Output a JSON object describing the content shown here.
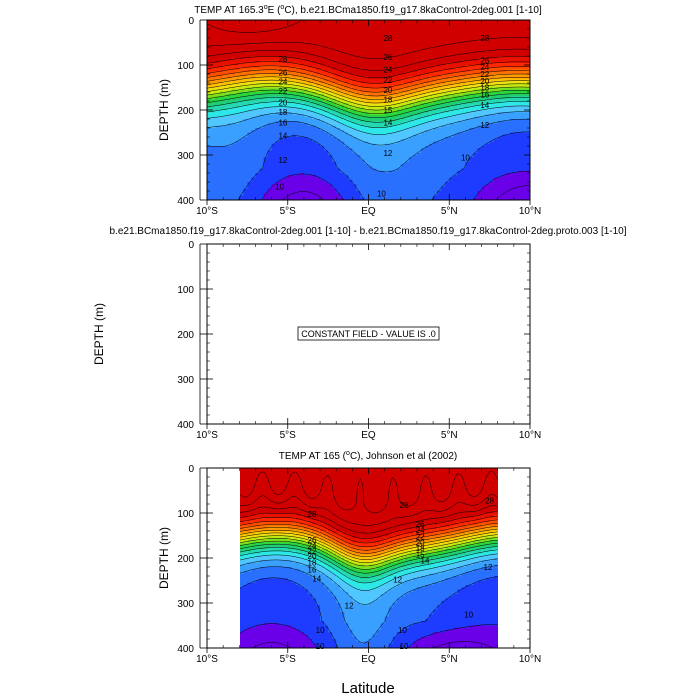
{
  "chart_data": [
    {
      "type": "contour",
      "title": "TEMP AT 165.3°E (°C), b.e21.BCma1850.f19_g17.8kaControl-2deg.001 [1-10]",
      "title_plain": "TEMP AT 165.3",
      "title_sup": "o",
      "title_rest": "E (",
      "title_sup2": "o",
      "title_end": "C), b.e21.BCma1850.f19_g17.8kaControl-2deg.001 [1-10]",
      "ylabel": "DEPTH (m)",
      "xlim": [
        -10,
        10
      ],
      "ylim": [
        0,
        400
      ],
      "x_ticks": [
        "10°S",
        "5°S",
        "EQ",
        "5°N",
        "10°N"
      ],
      "y_ticks": [
        "0",
        "100",
        "200",
        "300",
        "400"
      ],
      "contour_levels": [
        8,
        9,
        10,
        11,
        12,
        13,
        14,
        15,
        16,
        17,
        18,
        19,
        20,
        21,
        22,
        23,
        24,
        25,
        26,
        27,
        28,
        29
      ],
      "colormap": [
        "#6a00e8",
        "#1e3cff",
        "#2a70ff",
        "#3aa0ff",
        "#50c8ff",
        "#2ee8e8",
        "#25d8b0",
        "#1fce70",
        "#2ad63c",
        "#7ce01e",
        "#c8ea10",
        "#f0e010",
        "#ffc000",
        "#ff9a00",
        "#ff7200",
        "#ff4e00",
        "#ff2800",
        "#e81000",
        "#d00000"
      ],
      "contour_labels": [
        {
          "text": "28",
          "lat": -5.3,
          "depth": 87
        },
        {
          "text": "28",
          "lat": 1.2,
          "depth": 40
        },
        {
          "text": "28",
          "lat": 7.2,
          "depth": 40
        },
        {
          "text": "26",
          "lat": -5.3,
          "depth": 117
        },
        {
          "text": "26",
          "lat": 1.2,
          "depth": 82
        },
        {
          "text": "26",
          "lat": 7.2,
          "depth": 90
        },
        {
          "text": "24",
          "lat": -5.3,
          "depth": 137
        },
        {
          "text": "24",
          "lat": 1.2,
          "depth": 110
        },
        {
          "text": "24",
          "lat": 7.2,
          "depth": 104
        },
        {
          "text": "22",
          "lat": -5.3,
          "depth": 158
        },
        {
          "text": "22",
          "lat": 1.2,
          "depth": 133
        },
        {
          "text": "22",
          "lat": 7.2,
          "depth": 120
        },
        {
          "text": "20",
          "lat": -5.3,
          "depth": 183
        },
        {
          "text": "20",
          "lat": 1.2,
          "depth": 155
        },
        {
          "text": "20",
          "lat": 7.2,
          "depth": 136
        },
        {
          "text": "18",
          "lat": -5.3,
          "depth": 205
        },
        {
          "text": "18",
          "lat": 1.2,
          "depth": 177
        },
        {
          "text": "18",
          "lat": 7.2,
          "depth": 150
        },
        {
          "text": "16",
          "lat": -5.3,
          "depth": 228
        },
        {
          "text": "16",
          "lat": 7.2,
          "depth": 166
        },
        {
          "text": "15",
          "lat": 1.2,
          "depth": 200
        },
        {
          "text": "14",
          "lat": -5.3,
          "depth": 257
        },
        {
          "text": "14",
          "lat": 1.2,
          "depth": 228
        },
        {
          "text": "14",
          "lat": 7.2,
          "depth": 189
        },
        {
          "text": "12",
          "lat": -5.3,
          "depth": 311
        },
        {
          "text": "12",
          "lat": 1.2,
          "depth": 295
        },
        {
          "text": "12",
          "lat": 7.2,
          "depth": 233
        },
        {
          "text": "10",
          "lat": -5.5,
          "depth": 370
        },
        {
          "text": "10",
          "lat": 0.8,
          "depth": 385
        },
        {
          "text": "10",
          "lat": 6.0,
          "depth": 305
        }
      ]
    },
    {
      "type": "contour",
      "title": "b.e21.BCma1850.f19_g17.8kaControl-2deg.001 [1-10] - b.e21.BCma1850.f19_g17.8kaControl-2deg.proto.003 [1-10]",
      "ylabel": "DEPTH (m)",
      "xlim": [
        -10,
        10
      ],
      "ylim": [
        0,
        400
      ],
      "x_ticks": [
        "10°S",
        "5°S",
        "EQ",
        "5°N",
        "10°N"
      ],
      "y_ticks": [
        "0",
        "100",
        "200",
        "300",
        "400"
      ],
      "annotation": "CONSTANT FIELD - VALUE IS .0",
      "constant_value": 0.0
    },
    {
      "type": "contour",
      "title": "TEMP AT 165 (°C), Johnson et al (2002)",
      "title_plain": "TEMP AT 165 (",
      "title_sup": "o",
      "title_end": "C), Johnson et al (2002)",
      "ylabel": "DEPTH (m)",
      "xlabel": "Latitude",
      "xlim": [
        -10,
        10
      ],
      "ylim": [
        0,
        400
      ],
      "data_lat_range": [
        -8,
        8
      ],
      "x_ticks": [
        "10°S",
        "5°S",
        "EQ",
        "5°N",
        "10°N"
      ],
      "y_ticks": [
        "0",
        "100",
        "200",
        "300",
        "400"
      ],
      "contour_labels": [
        {
          "text": "28",
          "lat": -3.5,
          "depth": 102
        },
        {
          "text": "28",
          "lat": 2.2,
          "depth": 82
        },
        {
          "text": "28",
          "lat": 7.5,
          "depth": 72
        },
        {
          "text": "26",
          "lat": -3.5,
          "depth": 160
        },
        {
          "text": "26",
          "lat": 3.2,
          "depth": 124
        },
        {
          "text": "24",
          "lat": -3.5,
          "depth": 172
        },
        {
          "text": "24",
          "lat": 3.2,
          "depth": 138
        },
        {
          "text": "22",
          "lat": -3.5,
          "depth": 184
        },
        {
          "text": "22",
          "lat": 3.2,
          "depth": 152
        },
        {
          "text": "20",
          "lat": -3.5,
          "depth": 196
        },
        {
          "text": "20",
          "lat": 3.2,
          "depth": 166
        },
        {
          "text": "18",
          "lat": -3.5,
          "depth": 210
        },
        {
          "text": "18",
          "lat": 3.2,
          "depth": 178
        },
        {
          "text": "16",
          "lat": -3.5,
          "depth": 225
        },
        {
          "text": "15",
          "lat": 3.2,
          "depth": 192
        },
        {
          "text": "14",
          "lat": -3.2,
          "depth": 245
        },
        {
          "text": "14",
          "lat": 3.5,
          "depth": 206
        },
        {
          "text": "12",
          "lat": -1.2,
          "depth": 305
        },
        {
          "text": "12",
          "lat": 1.8,
          "depth": 248
        },
        {
          "text": "12",
          "lat": 7.4,
          "depth": 220
        },
        {
          "text": "10",
          "lat": -3.0,
          "depth": 360
        },
        {
          "text": "10",
          "lat": 2.1,
          "depth": 360
        },
        {
          "text": "10",
          "lat": 6.2,
          "depth": 325
        },
        {
          "text": "10",
          "lat": -3.0,
          "depth": 395
        },
        {
          "text": "10",
          "lat": 2.2,
          "depth": 395
        }
      ]
    }
  ]
}
